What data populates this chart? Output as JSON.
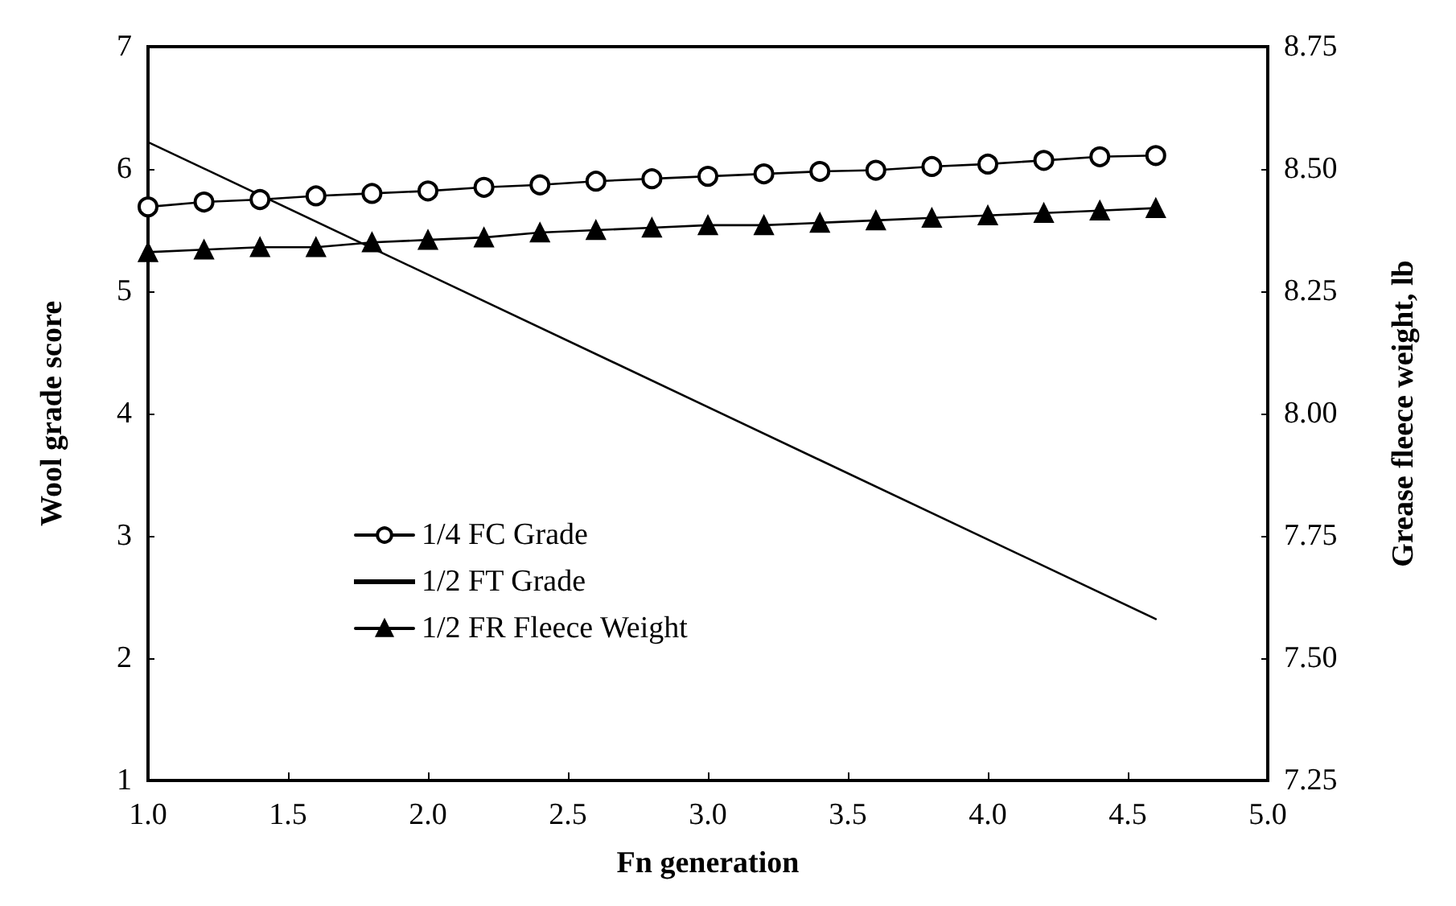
{
  "chart_data": {
    "type": "line",
    "xlabel": "Fn generation",
    "ylabel": "Wool grade score",
    "y2label": "Grease fleece weight, lb",
    "xlim": [
      1,
      5
    ],
    "xticks": [
      {
        "value": 1,
        "label": "1.0"
      },
      {
        "value": 1.5,
        "label": "1.5"
      },
      {
        "value": 2,
        "label": "2.0"
      },
      {
        "value": 2.5,
        "label": "2.5"
      },
      {
        "value": 3,
        "label": "3.0"
      },
      {
        "value": 3.5,
        "label": "3.5"
      },
      {
        "value": 4,
        "label": "4.0"
      },
      {
        "value": 4.5,
        "label": "4.5"
      },
      {
        "value": 5,
        "label": "5.0"
      }
    ],
    "ylim": [
      1,
      7
    ],
    "yticks": [
      1,
      2,
      3,
      4,
      5,
      6,
      7
    ],
    "y2lim": [
      7.25,
      8.75
    ],
    "y2ticks": [
      {
        "value": 7.25,
        "label": "7.25"
      },
      {
        "value": 7.5,
        "label": "7.50"
      },
      {
        "value": 7.75,
        "label": "7.75"
      },
      {
        "value": 8,
        "label": "8.00"
      },
      {
        "value": 8.25,
        "label": "8.25"
      },
      {
        "value": 8.5,
        "label": "8.50"
      },
      {
        "value": 8.75,
        "label": "8.75"
      }
    ],
    "grid": false,
    "legend": "bottom left",
    "line_style": "solid",
    "series": [
      {
        "name": "1/4 FC Grade",
        "color": "#000000",
        "marker": "circle",
        "x": [
          1.0,
          1.2,
          1.4,
          1.6,
          1.8,
          2.0,
          2.2,
          2.4,
          2.6,
          2.8,
          3.0,
          3.2,
          3.4,
          3.6,
          3.8,
          4.0,
          4.2,
          4.4,
          4.6
        ],
        "values": [
          5.69,
          5.73,
          5.75,
          5.78,
          5.8,
          5.82,
          5.85,
          5.87,
          5.9,
          5.92,
          5.94,
          5.96,
          5.98,
          5.99,
          6.02,
          6.04,
          6.07,
          6.1,
          6.11
        ]
      },
      {
        "name": "1/2 FT Grade",
        "color": "#000000",
        "marker": "none",
        "x": [
          1.0,
          4.6
        ],
        "values": [
          6.22,
          2.32
        ]
      },
      {
        "name": "1/2 FR Fleece Weight",
        "color": "#000000",
        "marker": "triangle",
        "axis": "y2",
        "x": [
          1.0,
          1.2,
          1.4,
          1.6,
          1.8,
          2.0,
          2.2,
          2.4,
          2.6,
          2.8,
          3.0,
          3.2,
          3.4,
          3.6,
          3.8,
          4.0,
          4.2,
          4.4,
          4.6
        ],
        "values": [
          8.33,
          8.335,
          8.34,
          8.34,
          8.35,
          8.355,
          8.36,
          8.37,
          8.375,
          8.38,
          8.385,
          8.385,
          8.39,
          8.395,
          8.4,
          8.405,
          8.41,
          8.415,
          8.42
        ]
      }
    ]
  }
}
